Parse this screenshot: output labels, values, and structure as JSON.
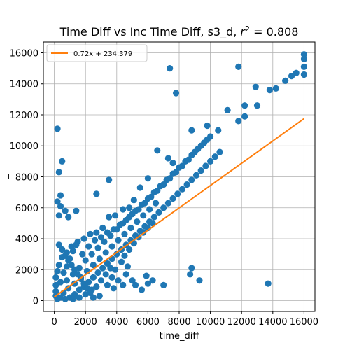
{
  "chart_data": {
    "type": "scatter",
    "title_main": "Time Diff vs Inc Time Diff, s3_d, ",
    "title_r2_symbol": "r",
    "title_r2_exp": "2",
    "title_r2_value": " = 0.808",
    "xlabel": "time_diff",
    "ylabel": "_",
    "xlim": [
      -700,
      16700
    ],
    "ylim": [
      -700,
      16700
    ],
    "x_ticks": [
      0,
      2000,
      4000,
      6000,
      8000,
      10000,
      12000,
      14000,
      16000
    ],
    "y_ticks": [
      0,
      2000,
      4000,
      6000,
      8000,
      10000,
      12000,
      14000,
      16000
    ],
    "grid": true,
    "legend_position": "upper-left",
    "series": [
      {
        "kind": "points",
        "color": "#1f77b4",
        "points": [
          [
            200,
            11100
          ],
          [
            500,
            9000
          ],
          [
            300,
            8300
          ],
          [
            400,
            6800
          ],
          [
            200,
            6400
          ],
          [
            400,
            6100
          ],
          [
            300,
            5500
          ],
          [
            700,
            5800
          ],
          [
            900,
            5400
          ],
          [
            1400,
            5800
          ],
          [
            3500,
            7800
          ],
          [
            2700,
            6900
          ],
          [
            7400,
            15000
          ],
          [
            7800,
            13400
          ],
          [
            11800,
            15100
          ],
          [
            8800,
            2100
          ],
          [
            8700,
            1700
          ],
          [
            13700,
            1100
          ],
          [
            6600,
            9700
          ],
          [
            7300,
            9200
          ],
          [
            7600,
            8900
          ],
          [
            8800,
            11000
          ],
          [
            9800,
            11300
          ],
          [
            10500,
            11000
          ],
          [
            11100,
            12300
          ],
          [
            11800,
            11600
          ],
          [
            12200,
            12600
          ],
          [
            12200,
            11900
          ],
          [
            13000,
            12600
          ],
          [
            12900,
            13800
          ],
          [
            13800,
            13600
          ],
          [
            14200,
            13700
          ],
          [
            14800,
            14200
          ],
          [
            15200,
            14500
          ],
          [
            15500,
            14700
          ],
          [
            16000,
            15900
          ],
          [
            16000,
            15600
          ],
          [
            16000,
            15100
          ],
          [
            16000,
            14600
          ],
          [
            9300,
            1300
          ],
          [
            7000,
            1000
          ],
          [
            6000,
            1100
          ],
          [
            5600,
            700
          ],
          [
            5000,
            1300
          ],
          [
            4600,
            1700
          ],
          [
            4700,
            2200
          ],
          [
            4400,
            1000
          ],
          [
            3900,
            2000
          ],
          [
            3700,
            1500
          ],
          [
            3400,
            1000
          ],
          [
            2900,
            300
          ],
          [
            6000,
            7900
          ],
          [
            5500,
            7300
          ],
          [
            5100,
            6500
          ],
          [
            4800,
            6000
          ],
          [
            4400,
            5900
          ],
          [
            3900,
            5500
          ],
          [
            3500,
            5400
          ],
          [
            3100,
            4700
          ],
          [
            2700,
            4400
          ],
          [
            2300,
            4300
          ],
          [
            1900,
            4000
          ],
          [
            1500,
            3800
          ],
          [
            1100,
            3500
          ],
          [
            800,
            3100
          ],
          [
            500,
            2800
          ],
          [
            300,
            2300
          ],
          [
            200,
            1900
          ],
          [
            100,
            1500
          ],
          [
            100,
            1000
          ],
          [
            100,
            600
          ],
          [
            100,
            300
          ],
          [
            200,
            100
          ],
          [
            400,
            200
          ],
          [
            700,
            100
          ],
          [
            1000,
            200
          ],
          [
            1300,
            400
          ],
          [
            1600,
            700
          ],
          [
            1900,
            900
          ],
          [
            2200,
            1200
          ],
          [
            2500,
            1500
          ],
          [
            2800,
            1800
          ],
          [
            3100,
            2100
          ],
          [
            3400,
            2400
          ],
          [
            3700,
            2700
          ],
          [
            4000,
            3000
          ],
          [
            4300,
            3300
          ],
          [
            4600,
            3600
          ],
          [
            4900,
            3900
          ],
          [
            5200,
            4200
          ],
          [
            5500,
            4500
          ],
          [
            5800,
            4800
          ],
          [
            6100,
            5100
          ],
          [
            6400,
            5400
          ],
          [
            6700,
            5700
          ],
          [
            7000,
            6000
          ],
          [
            7300,
            6300
          ],
          [
            7600,
            6600
          ],
          [
            7900,
            6900
          ],
          [
            8200,
            7200
          ],
          [
            8500,
            7500
          ],
          [
            8800,
            7800
          ],
          [
            9100,
            8100
          ],
          [
            9400,
            8400
          ],
          [
            9700,
            8700
          ],
          [
            10000,
            9000
          ],
          [
            10300,
            9300
          ],
          [
            10600,
            9600
          ],
          [
            800,
            1300
          ],
          [
            1200,
            1700
          ],
          [
            1600,
            2100
          ],
          [
            2000,
            2600
          ],
          [
            2400,
            3000
          ],
          [
            2800,
            3400
          ],
          [
            3200,
            3800
          ],
          [
            3600,
            4200
          ],
          [
            4000,
            4600
          ],
          [
            4400,
            5000
          ],
          [
            4800,
            5400
          ],
          [
            5200,
            5800
          ],
          [
            5600,
            6200
          ],
          [
            6000,
            6600
          ],
          [
            6400,
            7000
          ],
          [
            6800,
            7400
          ],
          [
            7200,
            7800
          ],
          [
            7600,
            8200
          ],
          [
            8000,
            8600
          ],
          [
            8400,
            9000
          ],
          [
            8800,
            9400
          ],
          [
            9200,
            9800
          ],
          [
            9600,
            10200
          ],
          [
            10000,
            10600
          ],
          [
            600,
            500
          ],
          [
            900,
            800
          ],
          [
            1300,
            1100
          ],
          [
            1700,
            1500
          ],
          [
            2100,
            1900
          ],
          [
            2500,
            2300
          ],
          [
            2900,
            2700
          ],
          [
            3300,
            3100
          ],
          [
            3700,
            3500
          ],
          [
            4100,
            3900
          ],
          [
            4500,
            4300
          ],
          [
            4900,
            4700
          ],
          [
            5300,
            5100
          ],
          [
            5700,
            5500
          ],
          [
            6100,
            5900
          ],
          [
            6500,
            6300
          ],
          [
            300,
            3600
          ],
          [
            500,
            3300
          ],
          [
            700,
            2900
          ],
          [
            900,
            2600
          ],
          [
            1100,
            2300
          ],
          [
            1300,
            2000
          ],
          [
            1500,
            1700
          ],
          [
            1700,
            1400
          ],
          [
            1900,
            1100
          ],
          [
            2100,
            800
          ],
          [
            2300,
            500
          ],
          [
            2500,
            200
          ],
          [
            400,
            1200
          ],
          [
            600,
            1800
          ],
          [
            800,
            2200
          ],
          [
            1000,
            2700
          ],
          [
            1200,
            3200
          ],
          [
            1400,
            3600
          ],
          [
            1800,
            3000
          ],
          [
            2200,
            3500
          ],
          [
            2600,
            3900
          ],
          [
            3000,
            4100
          ],
          [
            3400,
            4400
          ],
          [
            3800,
            4600
          ],
          [
            4200,
            4900
          ],
          [
            4600,
            5200
          ],
          [
            5000,
            5600
          ],
          [
            5400,
            5900
          ],
          [
            5800,
            6300
          ],
          [
            6200,
            6700
          ],
          [
            6600,
            7100
          ],
          [
            7000,
            7500
          ],
          [
            7400,
            7900
          ],
          [
            7800,
            8300
          ],
          [
            8200,
            8700
          ],
          [
            8600,
            9100
          ],
          [
            9000,
            9600
          ],
          [
            9400,
            10000
          ],
          [
            9800,
            10400
          ],
          [
            3000,
            1300
          ],
          [
            3300,
            1700
          ],
          [
            3600,
            2100
          ],
          [
            2700,
            900
          ],
          [
            2400,
            700
          ],
          [
            2000,
            400
          ],
          [
            1600,
            200
          ],
          [
            1200,
            100
          ],
          [
            3800,
            800
          ],
          [
            4100,
            1300
          ],
          [
            4300,
            2500
          ],
          [
            4500,
            2900
          ],
          [
            4800,
            3300
          ],
          [
            5100,
            3700
          ],
          [
            5400,
            4100
          ],
          [
            5700,
            4400
          ],
          [
            6000,
            4700
          ],
          [
            6300,
            5000
          ],
          [
            5200,
            1000
          ],
          [
            5900,
            1600
          ],
          [
            6300,
            1300
          ]
        ]
      },
      {
        "kind": "line",
        "name": "0.72x + 234.379",
        "color": "#ff7f0e",
        "slope": 0.72,
        "intercept": 234.379,
        "x_start": 0,
        "x_end": 16000
      }
    ]
  }
}
